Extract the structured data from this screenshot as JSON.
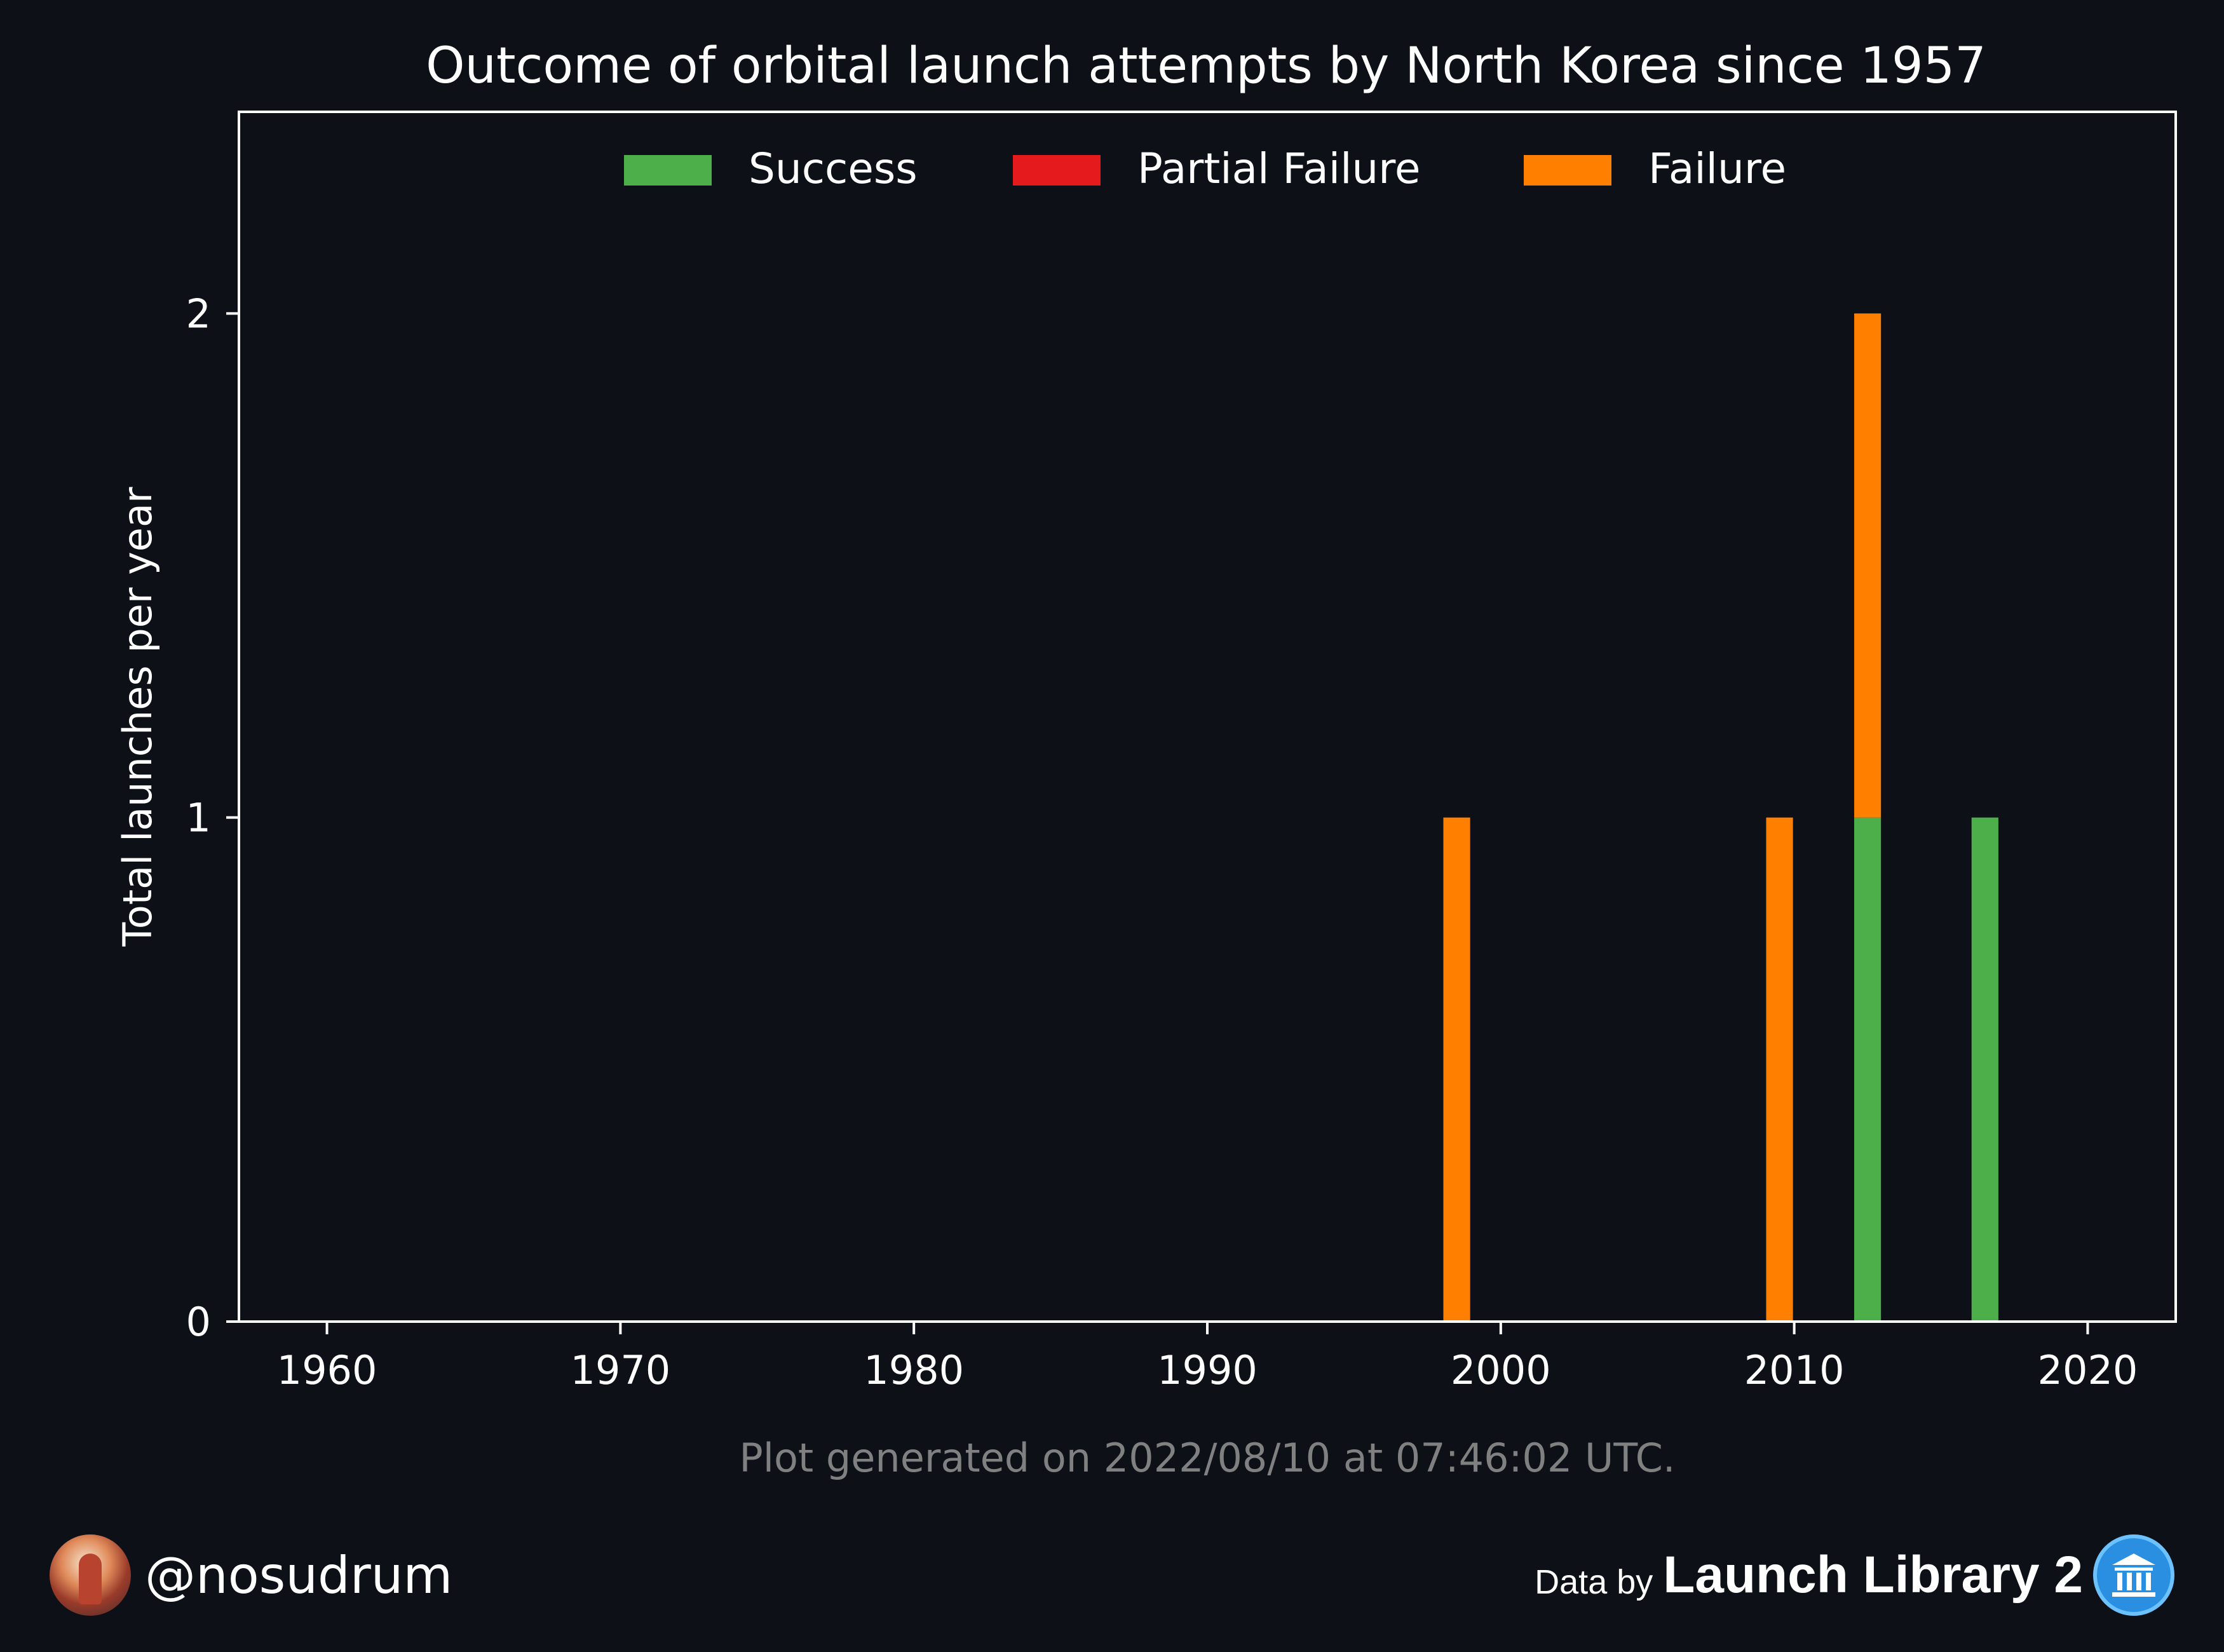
{
  "chart_data": {
    "type": "bar",
    "stacked": true,
    "title": "Outcome of orbital launch attempts by North Korea since 1957",
    "xlabel": "",
    "ylabel": "Total launches per year",
    "x": [
      1998,
      2009,
      2012,
      2016
    ],
    "series": [
      {
        "name": "Success",
        "color": "#4daf4a",
        "values": [
          0,
          0,
          1,
          1
        ]
      },
      {
        "name": "Partial Failure",
        "color": "#e41a1c",
        "values": [
          0,
          0,
          0,
          0
        ]
      },
      {
        "name": "Failure",
        "color": "#ff7f00",
        "values": [
          1,
          1,
          1,
          0
        ]
      }
    ],
    "xlim": [
      1957,
      2023
    ],
    "ylim": [
      0,
      2.4
    ],
    "xticks": [
      1960,
      1970,
      1980,
      1990,
      2000,
      2010,
      2020
    ],
    "yticks": [
      0,
      1,
      2
    ],
    "legend_position": "top-center",
    "grid": false
  },
  "caption": "Plot generated on 2022/08/10 at 07:46:02 UTC.",
  "footer": {
    "handle": "@nosudrum",
    "data_by": "Data by",
    "brand": "Launch Library 2",
    "avatar_icon": "avatar-photo",
    "brand_icon": "museum-icon"
  }
}
